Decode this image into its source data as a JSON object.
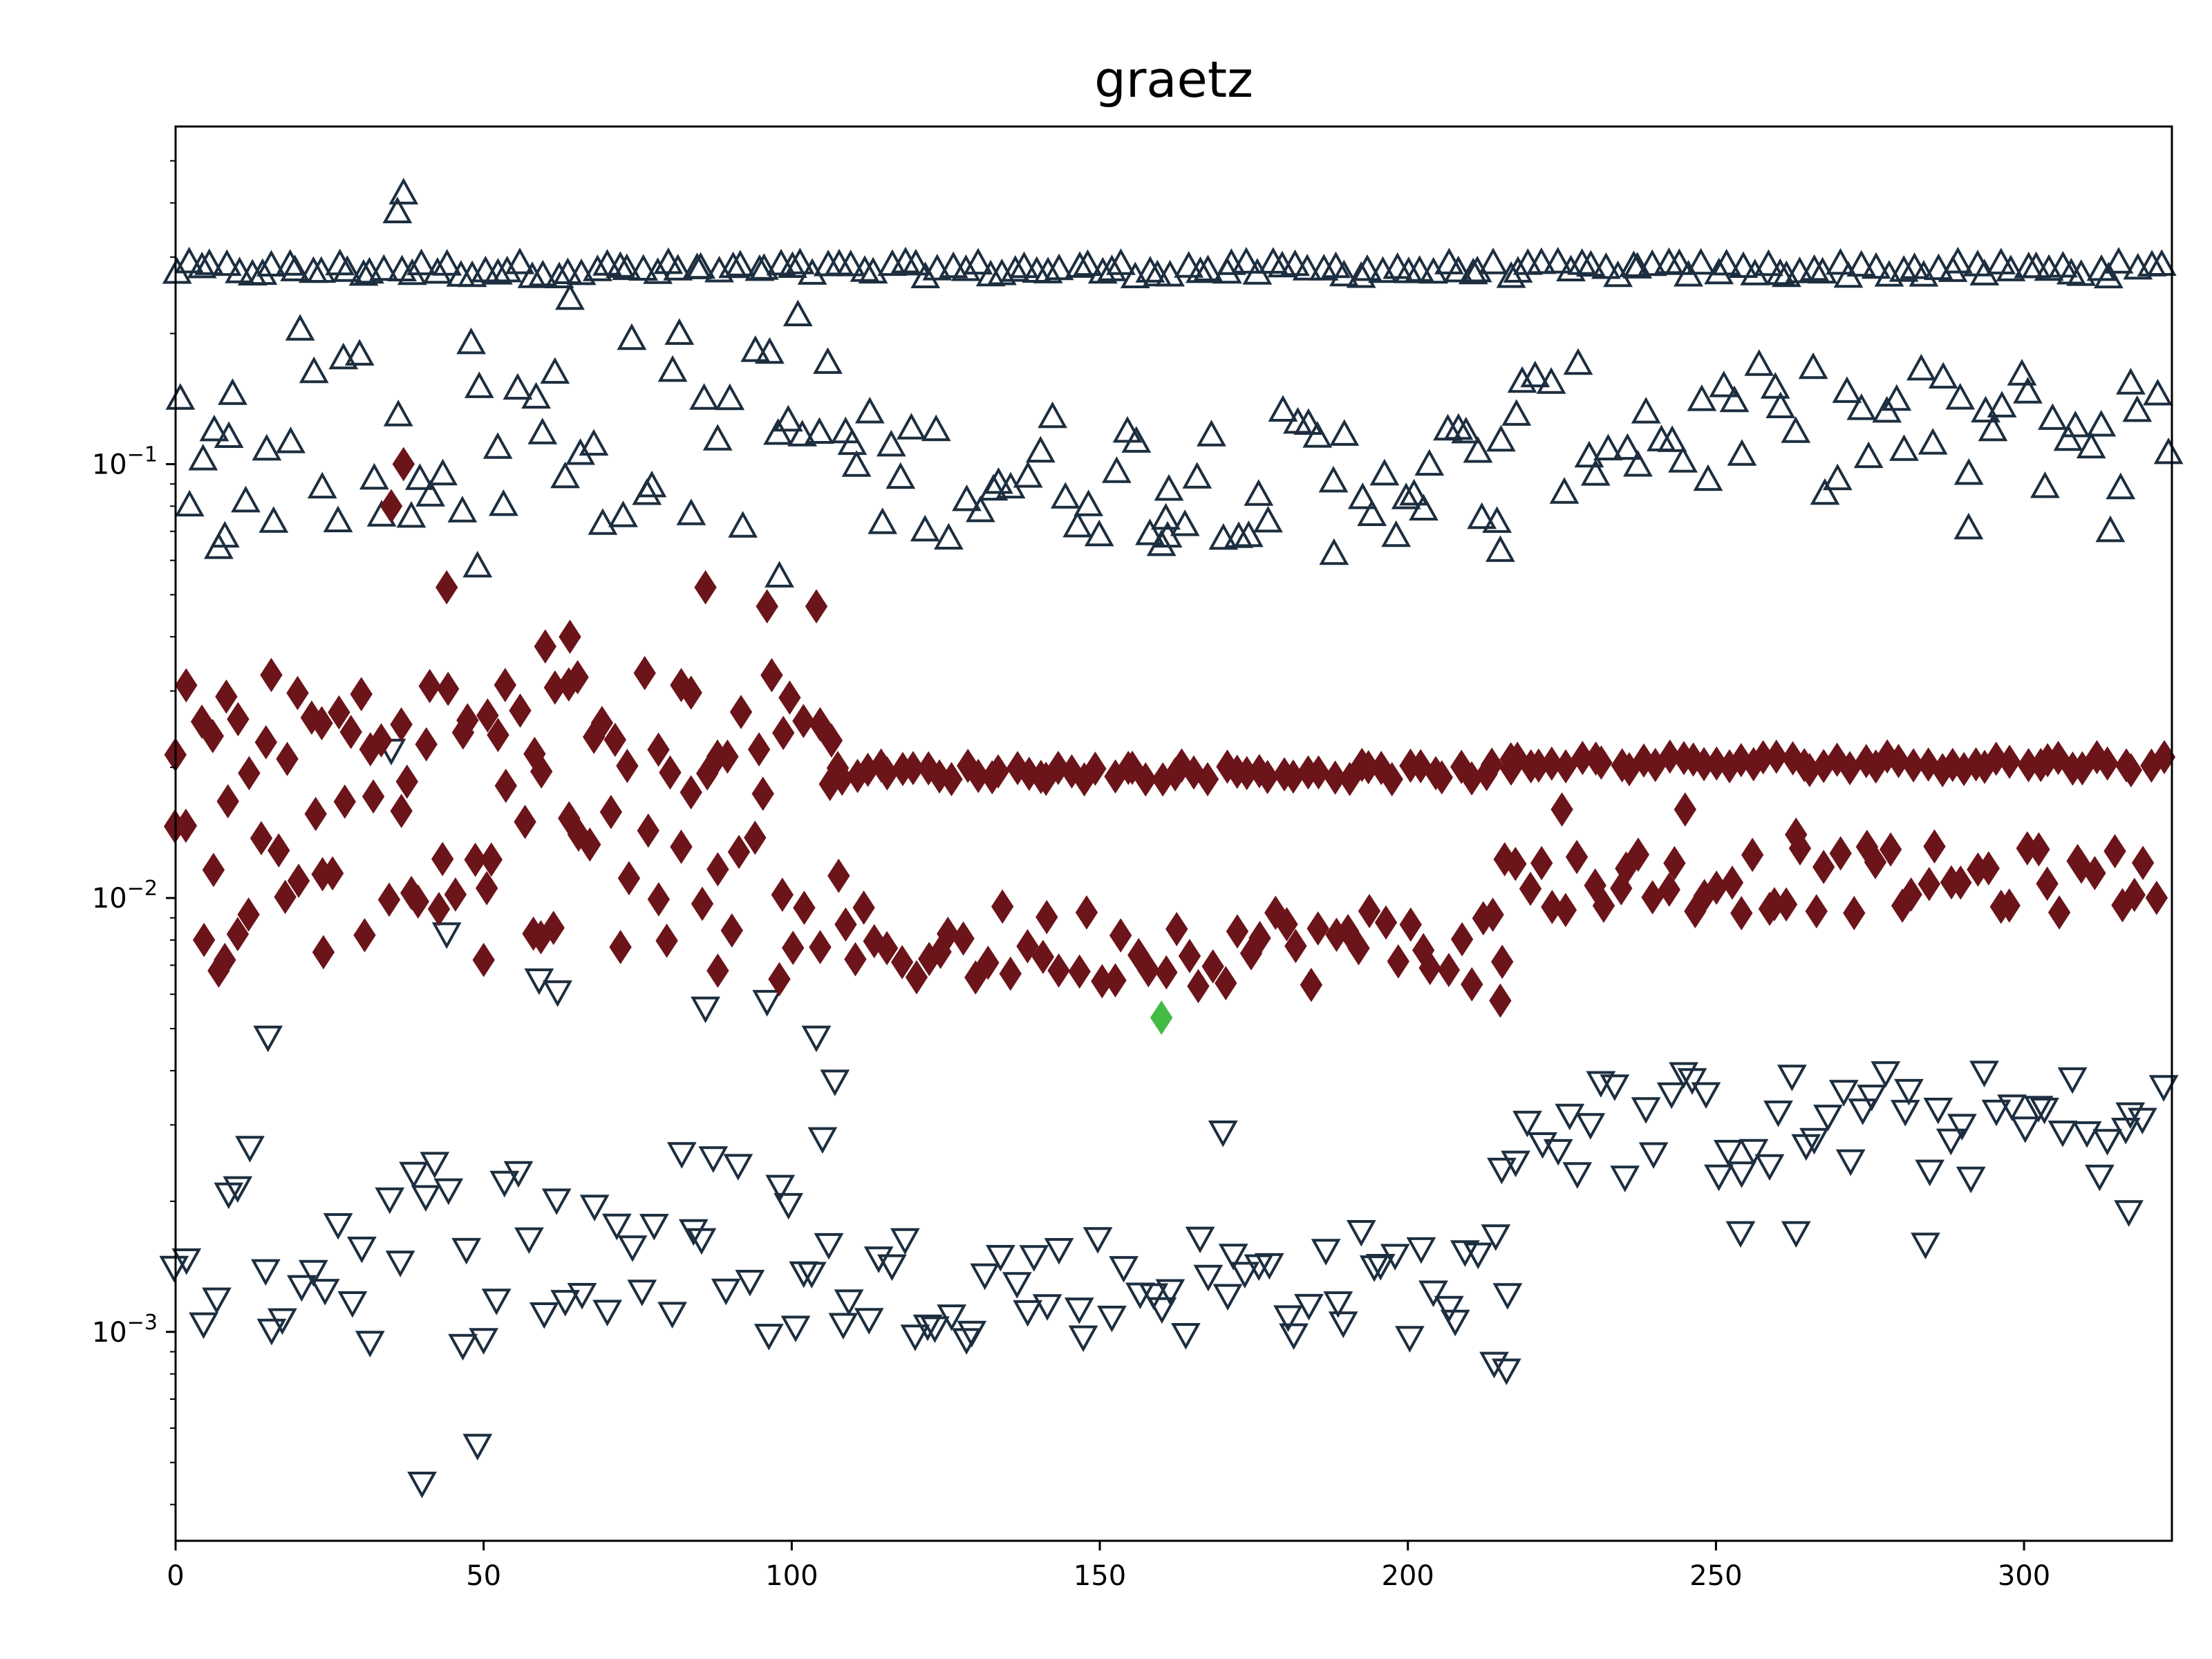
{
  "chart_data": {
    "type": "scatter",
    "title": "graetz",
    "xlabel": "",
    "ylabel": "",
    "xlim": [
      0,
      324
    ],
    "ylim": [
      0.00033,
      0.6
    ],
    "yscale": "log",
    "grid": false,
    "x_ticks": [
      0,
      50,
      100,
      150,
      200,
      250,
      300
    ],
    "x_tick_labels": [
      "0",
      "50",
      "100",
      "150",
      "200",
      "250",
      "300"
    ],
    "y_ticks": [
      0.001,
      0.01,
      0.1
    ],
    "y_tick_labels": [
      {
        "base": "10",
        "exp": "−3"
      },
      {
        "base": "10",
        "exp": "−2"
      },
      {
        "base": "10",
        "exp": "−1"
      }
    ],
    "colors": {
      "upper_triangles": "#1c2e3f",
      "lower_triangles": "#1c2e3f",
      "diamonds": "#6b141a",
      "highlight": "#44bb44"
    },
    "series": [
      {
        "marker": "triangle-up",
        "color": "#1c2e3f",
        "segments": [
          {
            "x_start": 0,
            "x_end": 323,
            "y": 0.28,
            "jitter": 0.04
          },
          {
            "x_start": 0,
            "x_end": 110,
            "y": 0.12,
            "jitter": 0.55
          },
          {
            "x_start": 110,
            "x_end": 215,
            "y": 0.095,
            "jitter": 0.35
          },
          {
            "x_start": 215,
            "x_end": 323,
            "y": 0.12,
            "jitter": 0.35
          }
        ],
        "points": [
          [
            36,
            0.38
          ],
          [
            37,
            0.42
          ],
          [
            64,
            0.24
          ],
          [
            101,
            0.22
          ],
          [
            98,
            0.055
          ],
          [
            49,
            0.058
          ],
          [
            7,
            0.064
          ],
          [
            8,
            0.068
          ],
          [
            188,
            0.062
          ],
          [
            201,
            0.085
          ],
          [
            212,
            0.075
          ],
          [
            215,
            0.063
          ],
          [
            160,
            0.065
          ],
          [
            161,
            0.068
          ],
          [
            291,
            0.071
          ],
          [
            314,
            0.07
          ]
        ]
      },
      {
        "marker": "triangle-down",
        "color": "#1c2e3f",
        "segments": [
          {
            "x_start": 0,
            "x_end": 100,
            "y": 0.0016,
            "jitter": 0.55
          },
          {
            "x_start": 100,
            "x_end": 216,
            "y": 0.0013,
            "jitter": 0.3
          },
          {
            "x_start": 216,
            "x_end": 323,
            "y": 0.003,
            "jitter": 0.3
          }
        ],
        "points": [
          [
            35,
            0.022
          ],
          [
            44,
            0.0083
          ],
          [
            59,
            0.0065
          ],
          [
            62,
            0.0061
          ],
          [
            86,
            0.0056
          ],
          [
            96,
            0.0058
          ],
          [
            104,
            0.0048
          ],
          [
            107,
            0.0038
          ],
          [
            105,
            0.0028
          ],
          [
            15,
            0.0048
          ],
          [
            40,
            0.00045
          ],
          [
            49,
            0.00055
          ],
          [
            170,
            0.0029
          ],
          [
            214,
            0.00085
          ],
          [
            216,
            0.00082
          ],
          [
            254,
            0.0017
          ],
          [
            263,
            0.0017
          ],
          [
            284,
            0.0016
          ],
          [
            317,
            0.0019
          ]
        ]
      },
      {
        "marker": "diamond",
        "color": "#6b141a",
        "segments": [
          {
            "x_start": 0,
            "x_end": 108,
            "y": 0.025,
            "jitter": 0.3
          },
          {
            "x_start": 0,
            "x_end": 108,
            "y": 0.012,
            "jitter": 0.45
          },
          {
            "x_start": 108,
            "x_end": 216,
            "y": 0.0195,
            "jitter": 0.04
          },
          {
            "x_start": 108,
            "x_end": 216,
            "y": 0.0078,
            "jitter": 0.22
          },
          {
            "x_start": 216,
            "x_end": 323,
            "y": 0.0205,
            "jitter": 0.04
          },
          {
            "x_start": 216,
            "x_end": 323,
            "y": 0.011,
            "jitter": 0.18
          }
        ],
        "points": [
          [
            35,
            0.08
          ],
          [
            37,
            0.1
          ],
          [
            44,
            0.052
          ],
          [
            86,
            0.052
          ],
          [
            96,
            0.047
          ],
          [
            104,
            0.047
          ],
          [
            64,
            0.04
          ],
          [
            60,
            0.038
          ],
          [
            7,
            0.0068
          ],
          [
            8,
            0.0072
          ],
          [
            24,
            0.0075
          ],
          [
            50,
            0.0072
          ],
          [
            88,
            0.0068
          ],
          [
            98,
            0.0065
          ],
          [
            215,
            0.0058
          ],
          [
            225,
            0.016
          ],
          [
            245,
            0.016
          ],
          [
            263,
            0.014
          ]
        ]
      },
      {
        "marker": "diamond",
        "color": "#44bb44",
        "points": [
          [
            160,
            0.0053
          ]
        ]
      }
    ]
  }
}
